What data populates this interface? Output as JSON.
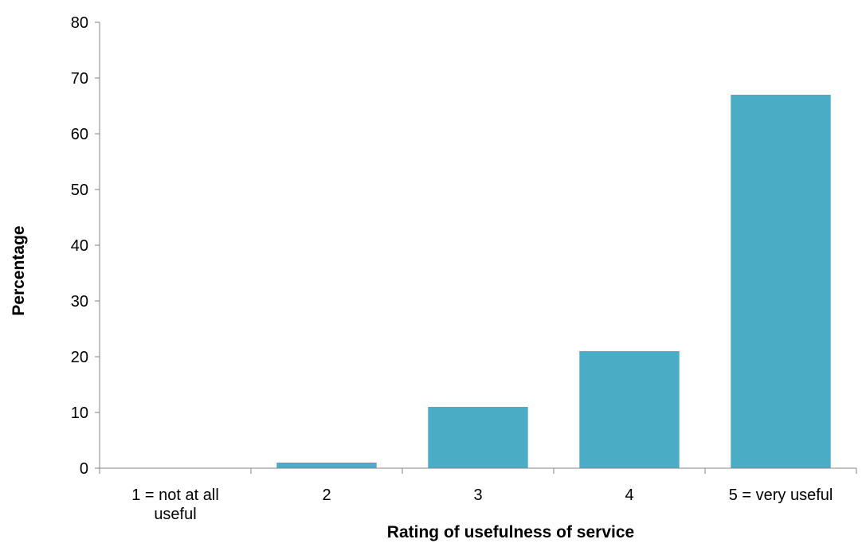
{
  "chart_data": {
    "type": "bar",
    "title": "",
    "xlabel": "Rating of usefulness of service",
    "ylabel": "Percentage",
    "categories": [
      [
        "1 = not at all",
        "useful"
      ],
      [
        "2"
      ],
      [
        "3"
      ],
      [
        "4"
      ],
      [
        "5 = very useful"
      ]
    ],
    "values": [
      0,
      1,
      11,
      21,
      67
    ],
    "ylim": [
      0,
      80
    ],
    "yticks": [
      0,
      10,
      20,
      30,
      40,
      50,
      60,
      70,
      80
    ],
    "grid": false,
    "legend": "none",
    "colors": {
      "bar": "#4BACC6",
      "axis": "#868686"
    }
  }
}
